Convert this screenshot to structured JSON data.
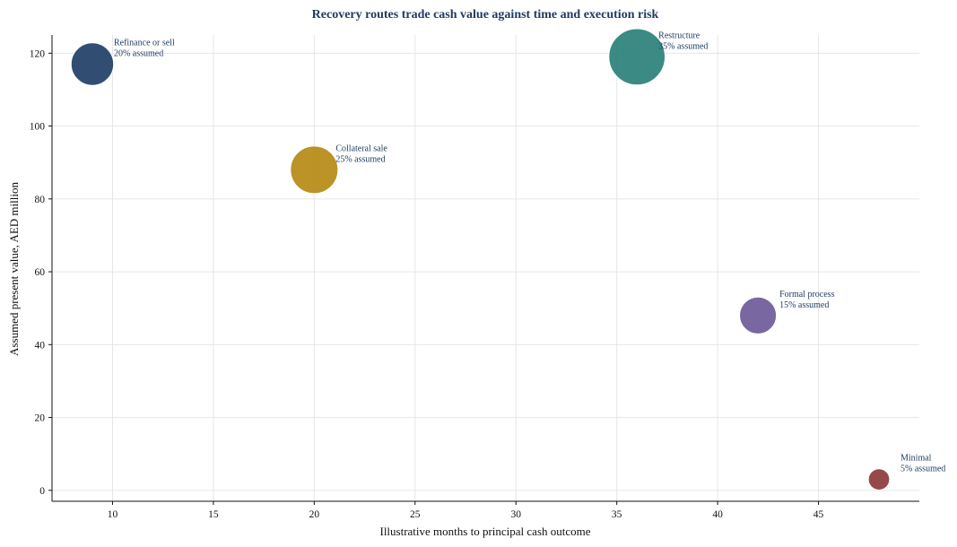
{
  "chart_data": {
    "type": "scatter",
    "title": "Recovery routes trade cash value against time and execution risk",
    "xlabel": "Illustrative months to principal cash outcome",
    "ylabel": "Assumed present value, AED million",
    "xlim": [
      7,
      50
    ],
    "ylim": [
      -3,
      125
    ],
    "xticks": [
      10,
      15,
      20,
      25,
      30,
      35,
      40,
      45
    ],
    "yticks": [
      0,
      20,
      40,
      60,
      80,
      100,
      120
    ],
    "grid": true,
    "points": [
      {
        "label": "Refinance or sell",
        "sublabel": "20% assumed",
        "x": 9,
        "y": 117,
        "size_pct": 20,
        "color": "#1f3f66"
      },
      {
        "label": "Collateral sale",
        "sublabel": "25% assumed",
        "x": 20,
        "y": 88,
        "size_pct": 25,
        "color": "#b58a14"
      },
      {
        "label": "Restructure",
        "sublabel": "35% assumed",
        "x": 36,
        "y": 119,
        "size_pct": 35,
        "color": "#2a8079"
      },
      {
        "label": "Formal process",
        "sublabel": "15% assumed",
        "x": 42,
        "y": 48,
        "size_pct": 15,
        "color": "#6d5a99"
      },
      {
        "label": "Minimal",
        "sublabel": "5% assumed",
        "x": 48,
        "y": 3,
        "size_pct": 5,
        "color": "#8c3a3a"
      }
    ]
  }
}
